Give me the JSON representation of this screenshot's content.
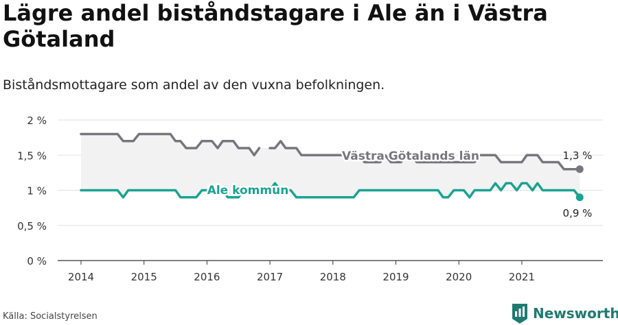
{
  "title": "Lägre andel biståndstagare i Ale än i Västra Götaland",
  "subtitle": "Biståndsmottagare som andel av den vuxna befolkningen.",
  "source": "Källa: Socialstyrelsen",
  "brand": "Newsworthy",
  "colors": {
    "region": "#76767e",
    "kommun": "#1aa391",
    "grid": "#e1e1e1",
    "band": "#f2f2f2"
  },
  "chart_data": {
    "type": "line",
    "title": "Lägre andel biståndstagare i Ale än i Västra Götaland",
    "subtitle": "Biståndsmottagare som andel av den vuxna befolkningen.",
    "xlabel": "",
    "ylabel": "",
    "xlim": [
      2014,
      2021.92
    ],
    "ylim": [
      0,
      2
    ],
    "x_ticks": [
      "2014",
      "2015",
      "2016",
      "2017",
      "2018",
      "2019",
      "2020",
      "2021"
    ],
    "y_ticks": [
      "0 %",
      "0,5 %",
      "1 %",
      "1,5 %",
      "2 %"
    ],
    "grid": true,
    "series": [
      {
        "name": "Västra Götalands län",
        "end_label": "1,3 %",
        "color": "#76767e",
        "points": [
          [
            2014.0,
            1.8
          ],
          [
            2014.08,
            1.8
          ],
          [
            2014.17,
            1.8
          ],
          [
            2014.25,
            1.8
          ],
          [
            2014.33,
            1.8
          ],
          [
            2014.42,
            1.8
          ],
          [
            2014.5,
            1.8
          ],
          [
            2014.58,
            1.8
          ],
          [
            2014.67,
            1.7
          ],
          [
            2014.75,
            1.7
          ],
          [
            2014.83,
            1.7
          ],
          [
            2014.92,
            1.8
          ],
          [
            2015.0,
            1.8
          ],
          [
            2015.08,
            1.8
          ],
          [
            2015.17,
            1.8
          ],
          [
            2015.25,
            1.8
          ],
          [
            2015.33,
            1.8
          ],
          [
            2015.42,
            1.8
          ],
          [
            2015.5,
            1.7
          ],
          [
            2015.58,
            1.7
          ],
          [
            2015.67,
            1.6
          ],
          [
            2015.75,
            1.6
          ],
          [
            2015.83,
            1.6
          ],
          [
            2015.92,
            1.7
          ],
          [
            2016.0,
            1.7
          ],
          [
            2016.08,
            1.7
          ],
          [
            2016.17,
            1.6
          ],
          [
            2016.25,
            1.7
          ],
          [
            2016.33,
            1.7
          ],
          [
            2016.42,
            1.7
          ],
          [
            2016.5,
            1.6
          ],
          [
            2016.58,
            1.6
          ],
          [
            2016.67,
            1.6
          ],
          [
            2016.75,
            1.5
          ],
          [
            2016.83,
            1.6
          ],
          [
            2017.0,
            1.6
          ],
          [
            2017.08,
            1.6
          ],
          [
            2017.17,
            1.7
          ],
          [
            2017.25,
            1.6
          ],
          [
            2017.33,
            1.6
          ],
          [
            2017.42,
            1.6
          ],
          [
            2017.5,
            1.5
          ],
          [
            2017.58,
            1.5
          ],
          [
            2017.67,
            1.5
          ],
          [
            2017.75,
            1.5
          ],
          [
            2017.83,
            1.5
          ],
          [
            2017.92,
            1.5
          ],
          [
            2018.0,
            1.5
          ],
          [
            2018.08,
            1.5
          ],
          [
            2018.17,
            1.5
          ],
          [
            2018.25,
            1.5
          ],
          [
            2018.33,
            1.5
          ],
          [
            2018.42,
            1.5
          ],
          [
            2018.5,
            1.4
          ],
          [
            2018.58,
            1.4
          ],
          [
            2018.67,
            1.4
          ],
          [
            2018.75,
            1.4
          ],
          [
            2018.83,
            1.5
          ],
          [
            2018.92,
            1.4
          ],
          [
            2019.0,
            1.4
          ],
          [
            2019.08,
            1.4
          ],
          [
            2019.17,
            1.5
          ],
          [
            2019.25,
            1.5
          ],
          [
            2019.33,
            1.4
          ],
          [
            2019.42,
            1.4
          ],
          [
            2019.5,
            1.4
          ],
          [
            2019.58,
            1.4
          ],
          [
            2019.67,
            1.4
          ],
          [
            2019.75,
            1.4
          ],
          [
            2019.83,
            1.4
          ],
          [
            2019.92,
            1.4
          ],
          [
            2020.0,
            1.4
          ],
          [
            2020.08,
            1.4
          ],
          [
            2020.17,
            1.4
          ],
          [
            2020.25,
            1.4
          ],
          [
            2020.33,
            1.5
          ],
          [
            2020.42,
            1.5
          ],
          [
            2020.5,
            1.5
          ],
          [
            2020.58,
            1.5
          ],
          [
            2020.67,
            1.4
          ],
          [
            2020.75,
            1.4
          ],
          [
            2020.83,
            1.4
          ],
          [
            2020.92,
            1.4
          ],
          [
            2021.0,
            1.4
          ],
          [
            2021.08,
            1.5
          ],
          [
            2021.17,
            1.5
          ],
          [
            2021.25,
            1.5
          ],
          [
            2021.33,
            1.4
          ],
          [
            2021.42,
            1.4
          ],
          [
            2021.5,
            1.4
          ],
          [
            2021.58,
            1.4
          ],
          [
            2021.67,
            1.3
          ],
          [
            2021.75,
            1.3
          ],
          [
            2021.83,
            1.3
          ],
          [
            2021.92,
            1.3
          ]
        ]
      },
      {
        "name": "Ale kommun",
        "end_label": "0,9 %",
        "color": "#1aa391",
        "points": [
          [
            2014.0,
            1.0
          ],
          [
            2014.08,
            1.0
          ],
          [
            2014.17,
            1.0
          ],
          [
            2014.25,
            1.0
          ],
          [
            2014.33,
            1.0
          ],
          [
            2014.42,
            1.0
          ],
          [
            2014.5,
            1.0
          ],
          [
            2014.58,
            1.0
          ],
          [
            2014.67,
            0.9
          ],
          [
            2014.75,
            1.0
          ],
          [
            2014.83,
            1.0
          ],
          [
            2014.92,
            1.0
          ],
          [
            2015.0,
            1.0
          ],
          [
            2015.08,
            1.0
          ],
          [
            2015.17,
            1.0
          ],
          [
            2015.25,
            1.0
          ],
          [
            2015.33,
            1.0
          ],
          [
            2015.42,
            1.0
          ],
          [
            2015.5,
            1.0
          ],
          [
            2015.58,
            0.9
          ],
          [
            2015.67,
            0.9
          ],
          [
            2015.75,
            0.9
          ],
          [
            2015.83,
            0.9
          ],
          [
            2015.92,
            1.0
          ],
          [
            2016.0,
            1.0
          ],
          [
            2016.08,
            1.0
          ],
          [
            2016.17,
            1.0
          ],
          [
            2016.25,
            1.0
          ],
          [
            2016.33,
            0.9
          ],
          [
            2016.42,
            0.9
          ],
          [
            2016.5,
            0.9
          ],
          [
            2016.58,
            1.0
          ],
          [
            2016.67,
            1.0
          ],
          [
            2016.75,
            1.0
          ],
          [
            2016.83,
            1.0
          ],
          [
            2016.92,
            1.0
          ],
          [
            2017.0,
            1.0
          ],
          [
            2017.08,
            1.1
          ],
          [
            2017.17,
            1.0
          ],
          [
            2017.25,
            1.0
          ],
          [
            2017.33,
            1.0
          ],
          [
            2017.42,
            0.9
          ],
          [
            2017.5,
            0.9
          ],
          [
            2017.58,
            0.9
          ],
          [
            2017.67,
            0.9
          ],
          [
            2017.75,
            0.9
          ],
          [
            2017.83,
            0.9
          ],
          [
            2017.92,
            0.9
          ],
          [
            2018.0,
            0.9
          ],
          [
            2018.08,
            0.9
          ],
          [
            2018.17,
            0.9
          ],
          [
            2018.25,
            0.9
          ],
          [
            2018.33,
            0.9
          ],
          [
            2018.42,
            1.0
          ],
          [
            2018.5,
            1.0
          ],
          [
            2018.58,
            1.0
          ],
          [
            2018.67,
            1.0
          ],
          [
            2018.75,
            1.0
          ],
          [
            2018.83,
            1.0
          ],
          [
            2018.92,
            1.0
          ],
          [
            2019.0,
            1.0
          ],
          [
            2019.08,
            1.0
          ],
          [
            2019.17,
            1.0
          ],
          [
            2019.25,
            1.0
          ],
          [
            2019.33,
            1.0
          ],
          [
            2019.42,
            1.0
          ],
          [
            2019.5,
            1.0
          ],
          [
            2019.58,
            1.0
          ],
          [
            2019.67,
            1.0
          ],
          [
            2019.75,
            0.9
          ],
          [
            2019.83,
            0.9
          ],
          [
            2019.92,
            1.0
          ],
          [
            2020.0,
            1.0
          ],
          [
            2020.08,
            1.0
          ],
          [
            2020.17,
            0.9
          ],
          [
            2020.25,
            1.0
          ],
          [
            2020.33,
            1.0
          ],
          [
            2020.42,
            1.0
          ],
          [
            2020.5,
            1.0
          ],
          [
            2020.58,
            1.1
          ],
          [
            2020.67,
            1.0
          ],
          [
            2020.75,
            1.1
          ],
          [
            2020.83,
            1.1
          ],
          [
            2020.92,
            1.0
          ],
          [
            2021.0,
            1.1
          ],
          [
            2021.08,
            1.1
          ],
          [
            2021.17,
            1.0
          ],
          [
            2021.25,
            1.1
          ],
          [
            2021.33,
            1.0
          ],
          [
            2021.42,
            1.0
          ],
          [
            2021.5,
            1.0
          ],
          [
            2021.58,
            1.0
          ],
          [
            2021.67,
            1.0
          ],
          [
            2021.75,
            1.0
          ],
          [
            2021.83,
            1.0
          ],
          [
            2021.92,
            0.9
          ]
        ]
      }
    ]
  }
}
